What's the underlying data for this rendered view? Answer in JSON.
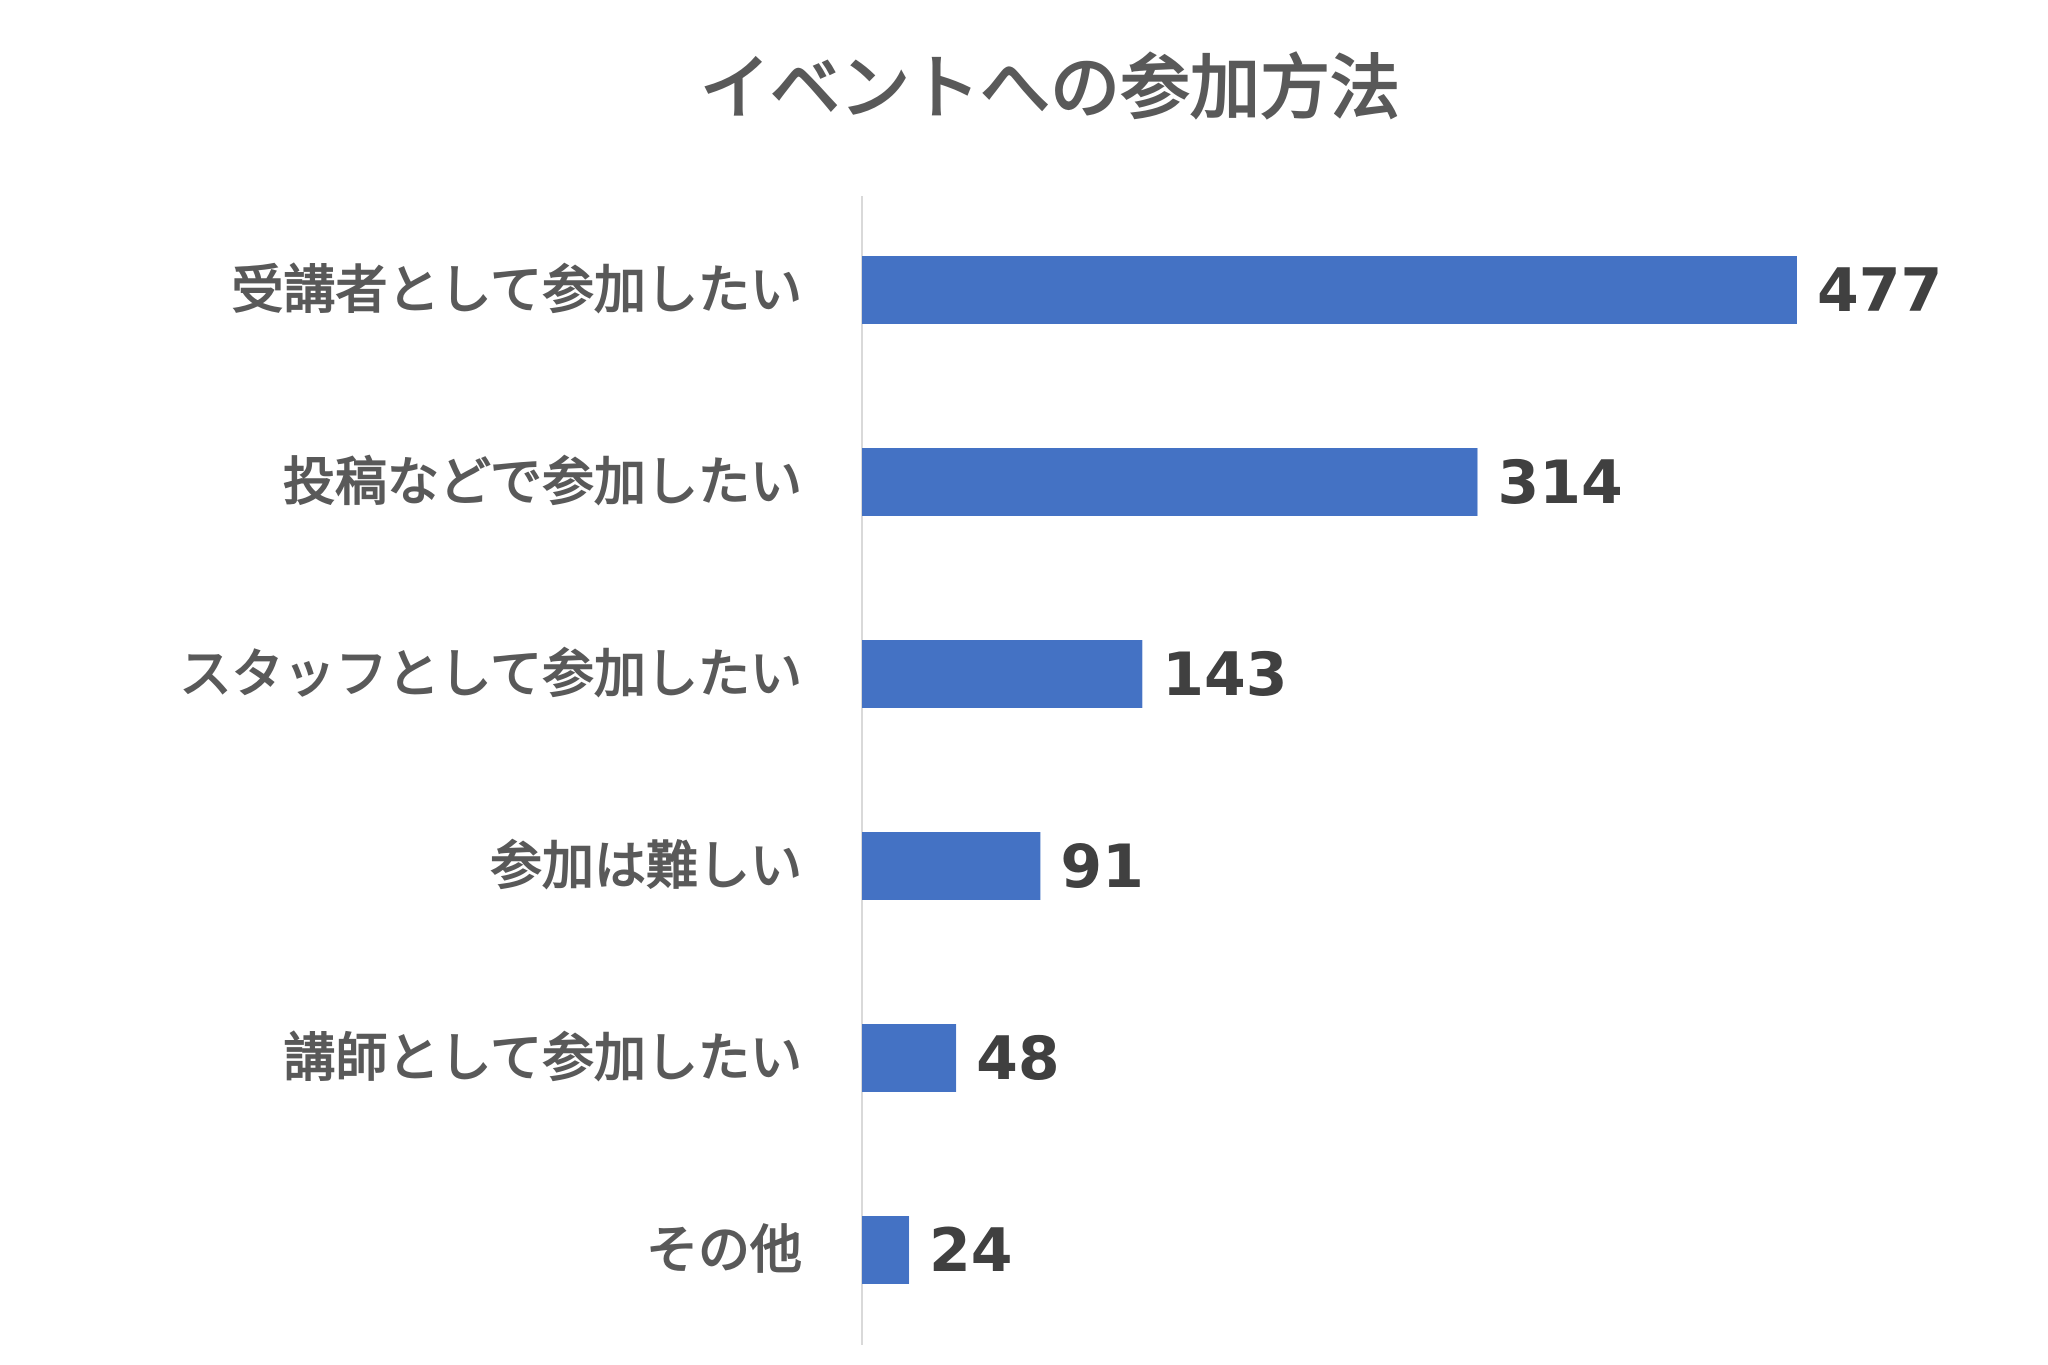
{
  "chart_data": {
    "type": "bar",
    "orientation": "horizontal",
    "title": "イベントへの参加方法",
    "categories": [
      "受講者として参加したい",
      "投稿などで参加したい",
      "スタッフとして参加したい",
      "参加は難しい",
      "講師として参加したい",
      "その他"
    ],
    "values": [
      477,
      314,
      143,
      91,
      48,
      24
    ],
    "xlim": [
      0,
      477
    ],
    "bar_color": "#4472C4",
    "axis_color": "#D9D9D9",
    "grid": false,
    "legend": "none",
    "data_labels": true
  }
}
